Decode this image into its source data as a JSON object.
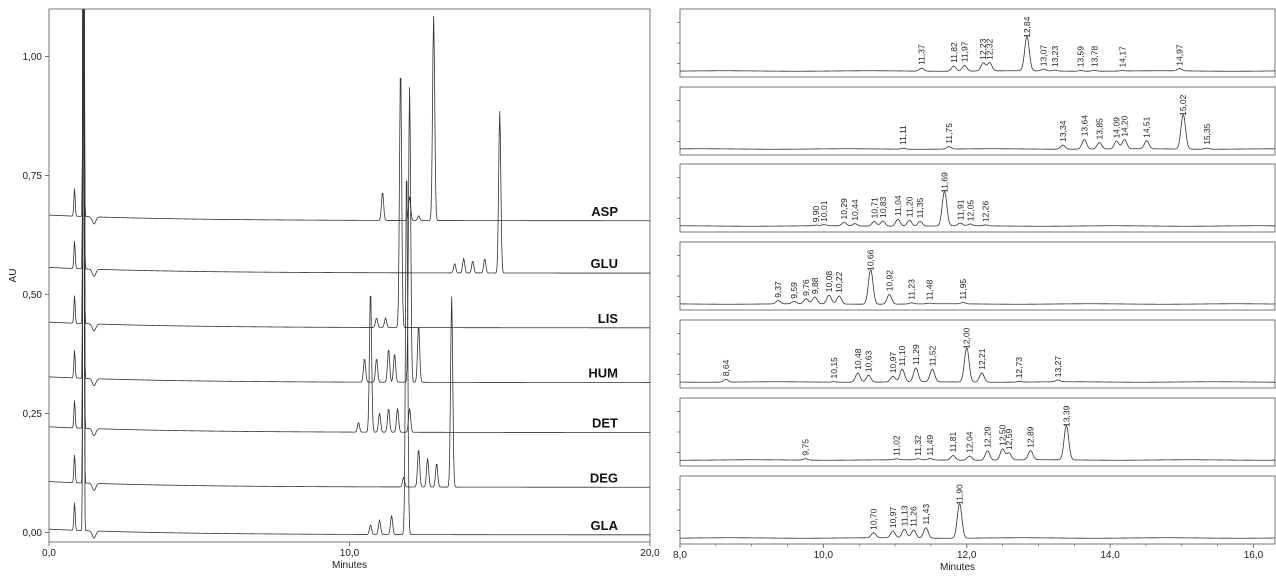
{
  "chart_data": [
    {
      "type": "line",
      "xlabel": "Minutes",
      "ylabel": "AU",
      "xlim": [
        0,
        20
      ],
      "ylim": [
        -0.02,
        1.1
      ],
      "x_ticks": [
        "0,0",
        "10,0",
        "20,0"
      ],
      "y_ticks": [
        {
          "value": 0.0,
          "label": "0,00"
        },
        {
          "value": 0.25,
          "label": "0,25"
        },
        {
          "value": 0.5,
          "label": "0,50"
        },
        {
          "value": 0.75,
          "label": "0,75"
        },
        {
          "value": 1.0,
          "label": "1,00"
        }
      ],
      "series": [
        {
          "name": "ASP",
          "baseline": 0.655,
          "major_peaks": [
            [
              11.1,
              0.06
            ],
            [
              12.0,
              0.05
            ],
            [
              12.3,
              0.01
            ],
            [
              12.8,
              0.43
            ]
          ]
        },
        {
          "name": "GLU",
          "baseline": 0.545,
          "major_peaks": [
            [
              13.5,
              0.02
            ],
            [
              13.8,
              0.03
            ],
            [
              14.1,
              0.025
            ],
            [
              14.5,
              0.03
            ],
            [
              15.0,
              0.34
            ]
          ]
        },
        {
          "name": "LIS",
          "baseline": 0.43,
          "major_peaks": [
            [
              10.9,
              0.02
            ],
            [
              11.2,
              0.02
            ],
            [
              11.7,
              0.55
            ]
          ]
        },
        {
          "name": "HUM",
          "baseline": 0.315,
          "major_peaks": [
            [
              10.5,
              0.05
            ],
            [
              10.9,
              0.05
            ],
            [
              11.3,
              0.07
            ],
            [
              11.5,
              0.06
            ],
            [
              12.0,
              0.62
            ],
            [
              12.3,
              0.12
            ]
          ]
        },
        {
          "name": "DET",
          "baseline": 0.21,
          "major_peaks": [
            [
              10.3,
              0.02
            ],
            [
              10.7,
              0.3
            ],
            [
              11.0,
              0.04
            ],
            [
              11.3,
              0.05
            ],
            [
              11.6,
              0.05
            ],
            [
              12.0,
              0.05
            ]
          ]
        },
        {
          "name": "DEG",
          "baseline": 0.095,
          "major_peaks": [
            [
              11.8,
              0.02
            ],
            [
              12.3,
              0.08
            ],
            [
              12.6,
              0.06
            ],
            [
              12.9,
              0.05
            ],
            [
              13.4,
              0.4
            ]
          ]
        },
        {
          "name": "GLA",
          "baseline": -0.005,
          "major_peaks": [
            [
              10.7,
              0.02
            ],
            [
              11.0,
              0.03
            ],
            [
              11.4,
              0.04
            ],
            [
              11.9,
              0.78
            ]
          ]
        }
      ],
      "system_peaks_x": [
        0.85,
        1.15
      ]
    },
    {
      "type": "line",
      "xlabel": "Minutes",
      "xlim": [
        8.0,
        16.3
      ],
      "x_ticks": [
        {
          "value": 8,
          "label": "8,0"
        },
        {
          "value": 10,
          "label": "10,0"
        },
        {
          "value": 12,
          "label": "12,0"
        },
        {
          "value": 14,
          "label": "14,0"
        },
        {
          "value": 16,
          "label": "16,0"
        }
      ],
      "panels": [
        {
          "name": "ASP",
          "peaks": [
            {
              "x": 11.37,
              "label": "11,37",
              "h": 0.13
            },
            {
              "x": 11.82,
              "label": "11,82",
              "h": 0.22
            },
            {
              "x": 11.97,
              "label": "11,97",
              "h": 0.25
            },
            {
              "x": 12.23,
              "label": "12,23",
              "h": 0.35
            },
            {
              "x": 12.32,
              "label": "12,32",
              "h": 0.35
            },
            {
              "x": 12.84,
              "label": "12,84",
              "h": 1.5
            },
            {
              "x": 13.07,
              "label": "13,07",
              "h": 0.08
            },
            {
              "x": 13.23,
              "label": "13,23",
              "h": 0.04
            },
            {
              "x": 13.59,
              "label": "13,59",
              "h": 0.03
            },
            {
              "x": 13.78,
              "label": "13,78",
              "h": 0.04
            },
            {
              "x": 14.17,
              "label": "14,17",
              "h": 0.02
            },
            {
              "x": 14.97,
              "label": "14,97",
              "h": 0.1
            }
          ]
        },
        {
          "name": "GLU",
          "peaks": [
            {
              "x": 11.11,
              "label": "11,11",
              "h": 0.04
            },
            {
              "x": 11.75,
              "label": "11,75",
              "h": 0.1
            },
            {
              "x": 13.34,
              "label": "13,34",
              "h": 0.18
            },
            {
              "x": 13.64,
              "label": "13,64",
              "h": 0.42
            },
            {
              "x": 13.85,
              "label": "13,85",
              "h": 0.28
            },
            {
              "x": 14.09,
              "label": "14,09",
              "h": 0.33
            },
            {
              "x": 14.2,
              "label": "14,20",
              "h": 0.4
            },
            {
              "x": 14.51,
              "label": "14,51",
              "h": 0.35
            },
            {
              "x": 15.02,
              "label": "15,02",
              "h": 1.5
            },
            {
              "x": 15.35,
              "label": "15,35",
              "h": 0.05
            }
          ]
        },
        {
          "name": "LIS",
          "peaks": [
            {
              "x": 9.9,
              "label": "9,90",
              "h": 0.03
            },
            {
              "x": 10.01,
              "label": "10,01",
              "h": 0.05
            },
            {
              "x": 10.29,
              "label": "10,29",
              "h": 0.15
            },
            {
              "x": 10.44,
              "label": "10,44",
              "h": 0.1
            },
            {
              "x": 10.71,
              "label": "10,71",
              "h": 0.2
            },
            {
              "x": 10.83,
              "label": "10,83",
              "h": 0.22
            },
            {
              "x": 11.04,
              "label": "11,04",
              "h": 0.3
            },
            {
              "x": 11.2,
              "label": "11,20",
              "h": 0.25
            },
            {
              "x": 11.35,
              "label": "11,35",
              "h": 0.2
            },
            {
              "x": 11.69,
              "label": "11,69",
              "h": 1.5
            },
            {
              "x": 11.91,
              "label": "11,91",
              "h": 0.12
            },
            {
              "x": 12.05,
              "label": "12,05",
              "h": 0.08
            },
            {
              "x": 12.26,
              "label": "12,26",
              "h": 0.04
            }
          ]
        },
        {
          "name": "HUM",
          "peaks": [
            {
              "x": 9.37,
              "label": "9,37",
              "h": 0.14
            },
            {
              "x": 9.59,
              "label": "9,59",
              "h": 0.1
            },
            {
              "x": 9.76,
              "label": "9,76",
              "h": 0.22
            },
            {
              "x": 9.88,
              "label": "9,88",
              "h": 0.3
            },
            {
              "x": 10.08,
              "label": "10,08",
              "h": 0.38
            },
            {
              "x": 10.22,
              "label": "10,22",
              "h": 0.35
            },
            {
              "x": 10.66,
              "label": "10,66",
              "h": 1.5
            },
            {
              "x": 10.92,
              "label": "10,92",
              "h": 0.42
            },
            {
              "x": 11.23,
              "label": "11,23",
              "h": 0.05
            },
            {
              "x": 11.48,
              "label": "11,48",
              "h": 0.03
            },
            {
              "x": 11.95,
              "label": "11,95",
              "h": 0.06
            }
          ]
        },
        {
          "name": "DET",
          "peaks": [
            {
              "x": 8.64,
              "label": "8,64",
              "h": 0.12
            },
            {
              "x": 10.15,
              "label": "10,15",
              "h": 0.02
            },
            {
              "x": 10.48,
              "label": "10,48",
              "h": 0.4
            },
            {
              "x": 10.63,
              "label": "10,63",
              "h": 0.3
            },
            {
              "x": 10.97,
              "label": "10,97",
              "h": 0.25
            },
            {
              "x": 11.1,
              "label": "11,10",
              "h": 0.55
            },
            {
              "x": 11.29,
              "label": "11,29",
              "h": 0.6
            },
            {
              "x": 11.52,
              "label": "11,52",
              "h": 0.55
            },
            {
              "x": 12.0,
              "label": "12,00",
              "h": 1.5
            },
            {
              "x": 12.21,
              "label": "12,21",
              "h": 0.4
            },
            {
              "x": 12.73,
              "label": "12,73",
              "h": 0.03
            },
            {
              "x": 13.27,
              "label": "13,27",
              "h": 0.08
            }
          ]
        },
        {
          "name": "DEG",
          "peaks": [
            {
              "x": 9.75,
              "label": "9,75",
              "h": 0.06
            },
            {
              "x": 11.02,
              "label": "11,02",
              "h": 0.04
            },
            {
              "x": 11.32,
              "label": "11,32",
              "h": 0.05
            },
            {
              "x": 11.49,
              "label": "11,49",
              "h": 0.06
            },
            {
              "x": 11.81,
              "label": "11,81",
              "h": 0.2
            },
            {
              "x": 12.04,
              "label": "12,04",
              "h": 0.18
            },
            {
              "x": 12.29,
              "label": "12,29",
              "h": 0.4
            },
            {
              "x": 12.5,
              "label": "12,50",
              "h": 0.48
            },
            {
              "x": 12.59,
              "label": "12,59",
              "h": 0.3
            },
            {
              "x": 12.89,
              "label": "12,89",
              "h": 0.4
            },
            {
              "x": 13.39,
              "label": "13,39",
              "h": 1.5
            }
          ]
        },
        {
          "name": "GLA",
          "peaks": [
            {
              "x": 10.7,
              "label": "10,70",
              "h": 0.22
            },
            {
              "x": 10.97,
              "label": "10,97",
              "h": 0.3
            },
            {
              "x": 11.13,
              "label": "11,13",
              "h": 0.38
            },
            {
              "x": 11.26,
              "label": "11,26",
              "h": 0.35
            },
            {
              "x": 11.43,
              "label": "11,43",
              "h": 0.45
            },
            {
              "x": 11.9,
              "label": "11,90",
              "h": 1.5
            }
          ]
        }
      ]
    }
  ]
}
